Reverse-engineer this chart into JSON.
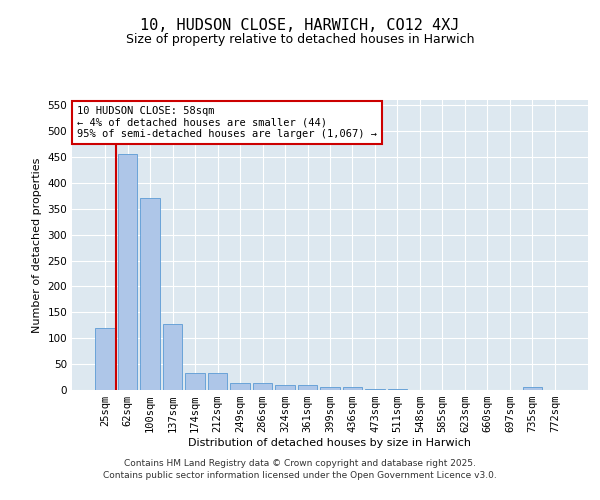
{
  "title_line1": "10, HUDSON CLOSE, HARWICH, CO12 4XJ",
  "title_line2": "Size of property relative to detached houses in Harwich",
  "xlabel": "Distribution of detached houses by size in Harwich",
  "ylabel": "Number of detached properties",
  "categories": [
    "25sqm",
    "62sqm",
    "100sqm",
    "137sqm",
    "174sqm",
    "212sqm",
    "249sqm",
    "286sqm",
    "324sqm",
    "361sqm",
    "399sqm",
    "436sqm",
    "473sqm",
    "511sqm",
    "548sqm",
    "585sqm",
    "623sqm",
    "660sqm",
    "697sqm",
    "735sqm",
    "772sqm"
  ],
  "values": [
    120,
    455,
    370,
    127,
    33,
    33,
    14,
    14,
    9,
    9,
    5,
    5,
    1,
    1,
    0,
    0,
    0,
    0,
    0,
    5,
    0
  ],
  "bar_color": "#aec6e8",
  "bar_edge_color": "#5b9bd5",
  "vline_color": "#cc0000",
  "vline_x": 0.5,
  "annotation_text": "10 HUDSON CLOSE: 58sqm\n← 4% of detached houses are smaller (44)\n95% of semi-detached houses are larger (1,067) →",
  "annotation_box_color": "#ffffff",
  "annotation_box_edge": "#cc0000",
  "ylim": [
    0,
    560
  ],
  "yticks": [
    0,
    50,
    100,
    150,
    200,
    250,
    300,
    350,
    400,
    450,
    500,
    550
  ],
  "bg_color": "#dde8f0",
  "grid_color": "#ffffff",
  "footer_line1": "Contains HM Land Registry data © Crown copyright and database right 2025.",
  "footer_line2": "Contains public sector information licensed under the Open Government Licence v3.0.",
  "title_fontsize": 11,
  "subtitle_fontsize": 9,
  "axis_label_fontsize": 8,
  "tick_fontsize": 7.5,
  "annotation_fontsize": 7.5,
  "footer_fontsize": 6.5
}
